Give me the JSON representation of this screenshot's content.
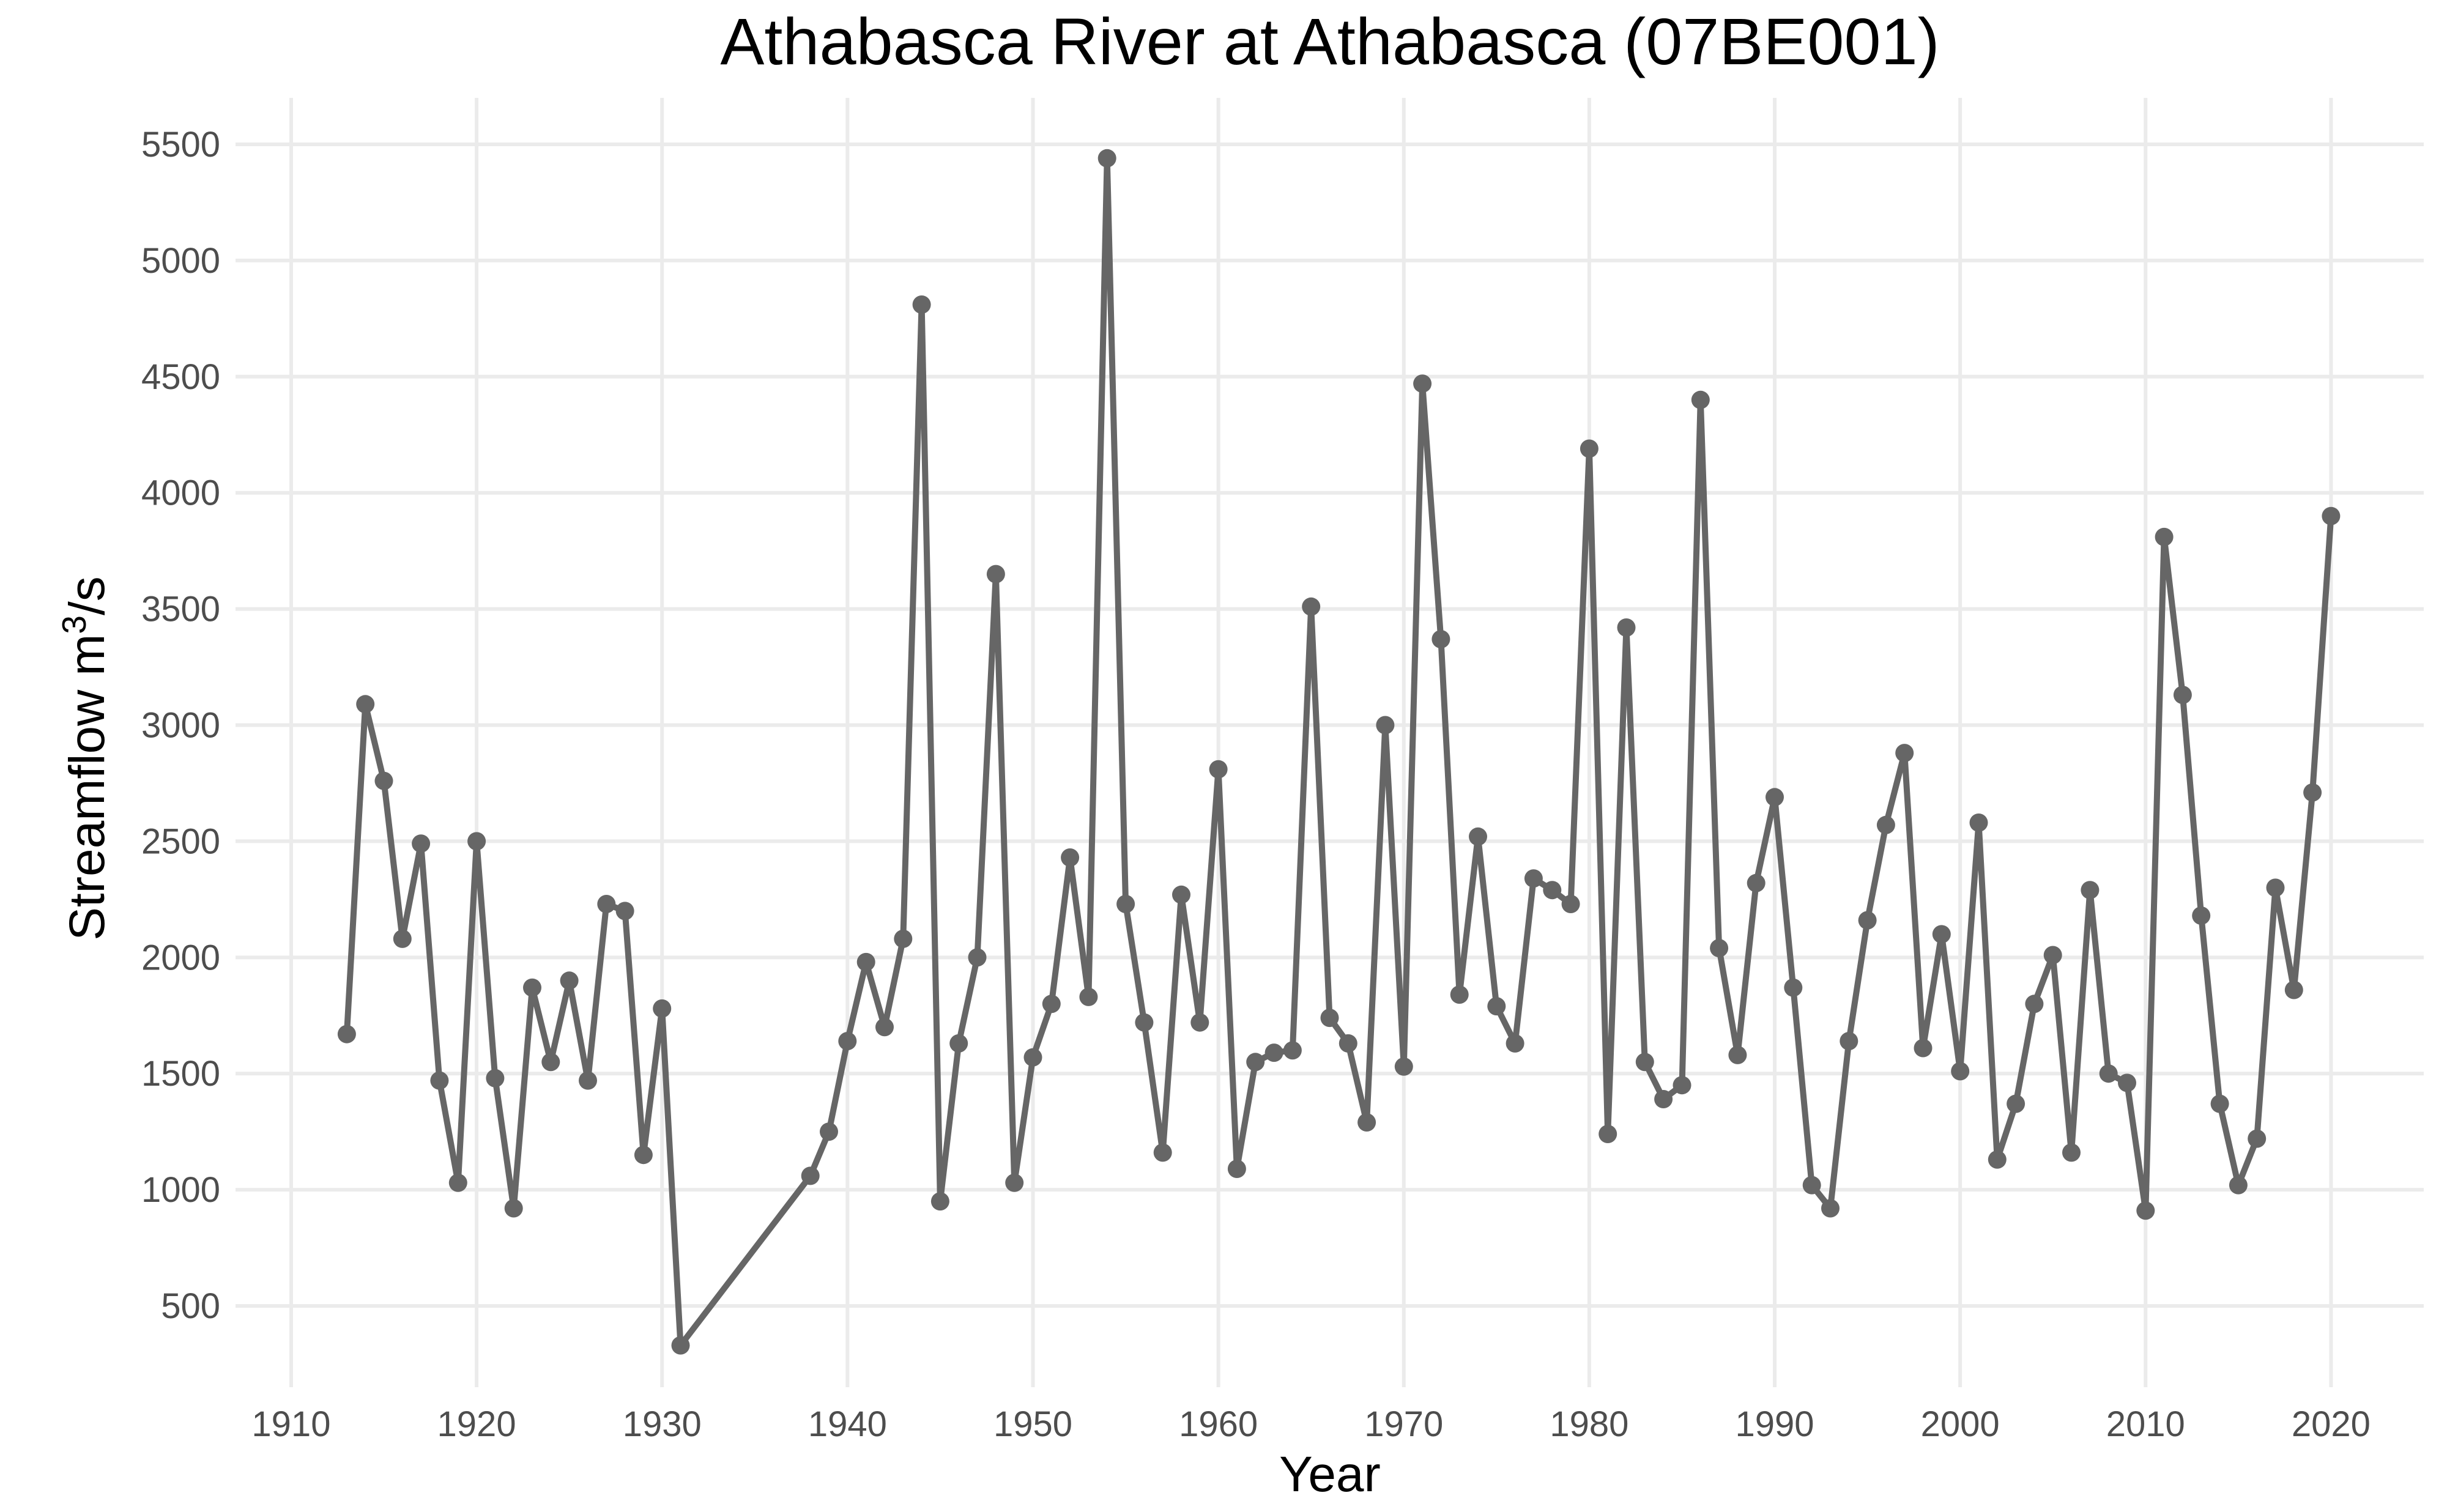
{
  "chart_data": {
    "type": "line",
    "title": "Athabasca River at Athabasca (07BE001)",
    "xlabel": "Year",
    "ylabel": "Streamflow m",
    "ylabel_superscript": "3",
    "ylabel_suffix": "/s",
    "xlim": [
      1907,
      2025
    ],
    "ylim": [
      150,
      5700
    ],
    "x_ticks": [
      1910,
      1920,
      1930,
      1940,
      1950,
      1960,
      1970,
      1980,
      1990,
      2000,
      2010,
      2020
    ],
    "y_ticks": [
      500,
      1000,
      1500,
      2000,
      2500,
      3000,
      3500,
      4000,
      4500,
      5000,
      5500
    ],
    "x_tick_labels": [
      "1910",
      "1920",
      "1930",
      "1940",
      "1950",
      "1960",
      "1970",
      "1980",
      "1990",
      "2000",
      "2010",
      "2020"
    ],
    "y_tick_labels": [
      "500",
      "1000",
      "1500",
      "2000",
      "2500",
      "3000",
      "3500",
      "4000",
      "4500",
      "5000",
      "5500"
    ],
    "grid": true,
    "legend": "none",
    "color": "#666666",
    "series": [
      {
        "x": [
          1913,
          1914,
          1915,
          1916,
          1917,
          1918,
          1919,
          1920,
          1921,
          1922,
          1923,
          1924,
          1925,
          1926,
          1927,
          1928,
          1929,
          1930,
          1931,
          1938,
          1939,
          1940,
          1941,
          1942,
          1943,
          1944,
          1945,
          1946,
          1947,
          1948,
          1949,
          1950,
          1951,
          1952,
          1953,
          1954,
          1955,
          1956,
          1957,
          1958,
          1959,
          1960,
          1961,
          1962,
          1963,
          1964,
          1965,
          1966,
          1967,
          1968,
          1969,
          1970,
          1971,
          1972,
          1973,
          1974,
          1975,
          1976,
          1977,
          1978,
          1979,
          1980,
          1981,
          1982,
          1983,
          1984,
          1985,
          1986,
          1987,
          1988,
          1989,
          1990,
          1991,
          1992,
          1993,
          1994,
          1995,
          1996,
          1997,
          1998,
          1999,
          2000,
          2001,
          2002,
          2003,
          2004,
          2005,
          2006,
          2007,
          2008,
          2009,
          2010,
          2011,
          2012,
          2013,
          2014,
          2015,
          2016,
          2017,
          2018,
          2019,
          2020
        ],
        "y": [
          1670,
          3090,
          2760,
          2080,
          2490,
          1470,
          1030,
          2500,
          1480,
          920,
          1870,
          1550,
          1900,
          1470,
          2230,
          2200,
          1150,
          1780,
          330,
          1060,
          1250,
          1640,
          1980,
          1700,
          2080,
          4810,
          950,
          1630,
          2000,
          3650,
          1030,
          1570,
          1800,
          2430,
          1830,
          5440,
          2230,
          1720,
          1160,
          2270,
          1720,
          2810,
          1090,
          1550,
          1590,
          1600,
          3510,
          1740,
          1630,
          1290,
          3000,
          1530,
          4470,
          3370,
          1840,
          2520,
          1790,
          1630,
          2340,
          2290,
          2230,
          4190,
          1240,
          3420,
          1550,
          1390,
          1450,
          4400,
          2040,
          1580,
          2320,
          2690,
          1870,
          1020,
          920,
          1640,
          2160,
          2570,
          2880,
          1610,
          2100,
          1510,
          2580,
          1130,
          1370,
          1800,
          2010,
          1160,
          2290,
          1500,
          1460,
          910,
          3810,
          3130,
          2180,
          1370,
          1020,
          1220,
          2300,
          1860,
          2710,
          3900
        ]
      }
    ]
  }
}
